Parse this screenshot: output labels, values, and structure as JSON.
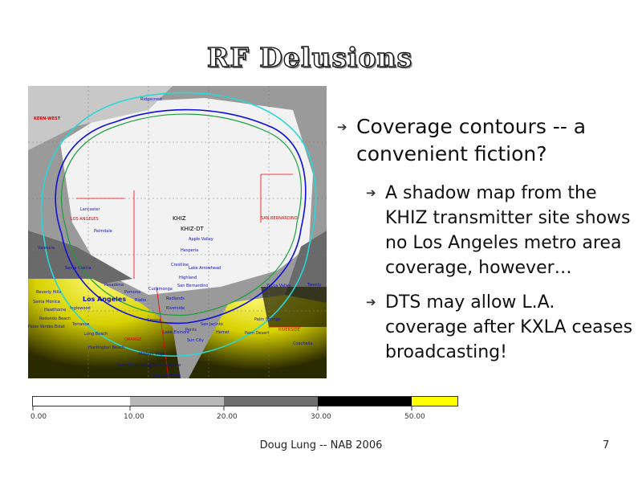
{
  "slide": {
    "title": "RF Delusions",
    "bullets": [
      {
        "text": "Coverage contours -- a convenient fiction?"
      },
      {
        "text": "A shadow map from the KHIZ transmitter site shows no Los Angeles metro area coverage, however…"
      },
      {
        "text": "DTS may allow L.A. coverage after KXLA ceases broadcasting!"
      }
    ],
    "footer": "Doug Lung -- NAB 2006",
    "page_number": "7"
  },
  "map": {
    "labels": {
      "kern_west": "KERN-WEST",
      "ridgecrest": "Ridgecrest",
      "lancaster": "Lancaster",
      "los_angeles_county": "LOS ANGELES",
      "palmdale": "Palmdale",
      "khiz": "KHIZ",
      "khiz_dt": "KHIZ-DT",
      "san_bernardino_county": "SAN BERNARDINO",
      "apple_valley": "Apple Valley",
      "hesperia": "Hesperia",
      "valencia": "Valencia",
      "crestline": "Crestline",
      "lake_arrowhead": "Lake Arrowhead",
      "highland": "Highland",
      "cucamonga": "Cucamonga",
      "san_bernardino": "San Bernardino",
      "yucca_valley": "Yucca Valley",
      "twentynine": "Twenty",
      "santa_clarita": "Santa Clarita",
      "los_angeles_city": "Los Angeles",
      "pasadena": "Pasadena",
      "pomona": "Pomona",
      "rialto": "Rialto",
      "redlands": "Redlands",
      "riverside": "Riverside",
      "beverly_hills": "Beverly Hills",
      "santa_monica": "Santa Monica",
      "hawthorne": "Hawthorne",
      "inglewood": "Inglewood",
      "redondo_beach": "Redondo Beach",
      "torrance": "Torrance",
      "palos_verdes": "Palos Verdes Estat",
      "long_beach": "Long Beach",
      "corona": "Corona",
      "perris": "Perris",
      "hemet": "Hemet",
      "san_jacinto": "San Jacinto",
      "palm_springs": "Palm Springs",
      "riverside_county": "RIVERSIDE",
      "orange": "ORANGE",
      "huntington_beach": "Huntington Beach",
      "mission_viejo": "Mission Viejo",
      "dana_point": "Dana Point",
      "san_juan_capistrano": "San Juan Capistrano",
      "san_clemente": "San Clemente",
      "coachella": "Coachella",
      "palm_desert": "Palm Desert",
      "sun_city": "Sun City",
      "la_quinta": "Lake Elsinore"
    }
  },
  "legend": {
    "ticks": [
      "0.00",
      "10.00",
      "20.00",
      "30.00",
      "50.00"
    ],
    "colors": [
      "#ffffff",
      "#b8b8b8",
      "#6e6e6e",
      "#000000",
      "#ffff00"
    ]
  }
}
